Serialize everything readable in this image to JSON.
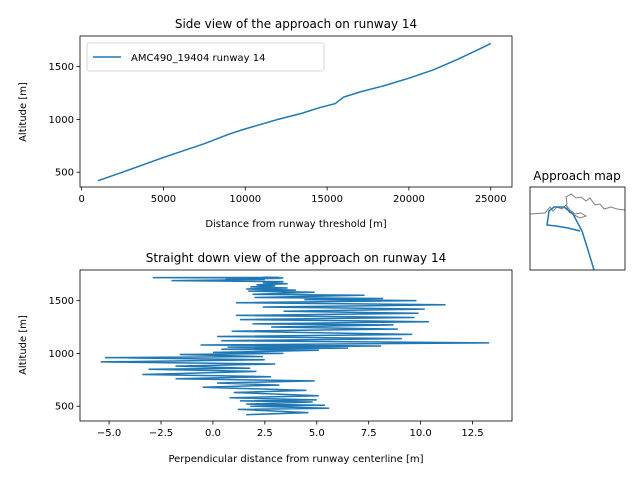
{
  "colors": {
    "series": "#1f77b4",
    "map_coast": "#808080",
    "axes": "#000000"
  },
  "chart_data": [
    {
      "type": "line",
      "title": "Side view of the approach on runway 14",
      "xlabel": "Distance from runway threshold [m]",
      "ylabel": "Altitude [m]",
      "xlim": [
        -100,
        26300
      ],
      "ylim": [
        360,
        1790
      ],
      "xticks": [
        0,
        5000,
        10000,
        15000,
        20000,
        25000
      ],
      "xtick_labels": [
        "0",
        "5000",
        "10000",
        "15000",
        "20000",
        "25000"
      ],
      "yticks": [
        500,
        1000,
        1500
      ],
      "ytick_labels": [
        "500",
        "1000",
        "1500"
      ],
      "legend_position": "top-left",
      "series": [
        {
          "name": "AMC490_19404 runway 14",
          "x": [
            1000,
            2500,
            5000,
            7500,
            9000,
            10000,
            12000,
            13500,
            14500,
            15500,
            16000,
            17000,
            18500,
            20000,
            21500,
            23000,
            24500,
            25000
          ],
          "y": [
            420,
            500,
            640,
            770,
            860,
            910,
            1000,
            1060,
            1110,
            1150,
            1210,
            1260,
            1320,
            1390,
            1470,
            1570,
            1680,
            1720
          ]
        }
      ]
    },
    {
      "type": "line",
      "title": "Straight down view of the approach on runway 14",
      "xlabel": "Perpendicular distance from runway centerline [m]",
      "ylabel": "Altitude [m]",
      "xlim": [
        -6.4,
        14.4
      ],
      "ylim": [
        360,
        1790
      ],
      "xticks": [
        -5.0,
        -2.5,
        0.0,
        2.5,
        5.0,
        7.5,
        10.0,
        12.5
      ],
      "xtick_labels": [
        "−5.0",
        "−2.5",
        "0.0",
        "2.5",
        "5.0",
        "7.5",
        "10.0",
        "12.5"
      ],
      "yticks": [
        500,
        1000,
        1500
      ],
      "ytick_labels": [
        "500",
        "1000",
        "1500"
      ],
      "series": [
        {
          "x": [
            1.6,
            4.6,
            1.2,
            5.6,
            1.8,
            5.4,
            1.6,
            4.8,
            1.3,
            5.0,
            0.8,
            5.1,
            1.0,
            4.5,
            -0.5,
            3.2,
            0.2,
            4.9,
            -1.8,
            2.8,
            -3.4,
            2.1,
            -3.1,
            1.8,
            -1.8,
            3.0,
            -5.4,
            2.5,
            -5.2,
            2.4,
            -1.6,
            3.4,
            0.0,
            5.1,
            0.4,
            6.5,
            0.7,
            8.1,
            -0.6,
            13.3,
            0.4,
            9.1,
            0.2,
            9.6,
            0.9,
            8.9,
            2.8,
            8.7,
            1.9,
            10.4,
            1.3,
            9.7,
            1.1,
            9.9,
            3.4,
            10.2,
            2.4,
            11.2,
            1.1,
            9.8,
            4.4,
            8.2,
            2.0,
            7.3,
            1.9,
            4.9,
            1.7,
            4.0,
            1.6,
            3.6,
            1.8,
            3.0,
            2.1,
            3.6,
            2.4,
            3.4,
            -2.0,
            2.5,
            0.6,
            3.3,
            0.7,
            3.4,
            -2.9,
            3.2,
            2.4
          ],
          "y": [
            420,
            440,
            470,
            480,
            500,
            510,
            520,
            540,
            550,
            560,
            580,
            600,
            630,
            650,
            680,
            700,
            720,
            740,
            760,
            780,
            800,
            830,
            850,
            860,
            880,
            900,
            920,
            940,
            960,
            970,
            990,
            1000,
            1010,
            1030,
            1040,
            1050,
            1060,
            1070,
            1080,
            1100,
            1120,
            1140,
            1160,
            1180,
            1210,
            1230,
            1250,
            1270,
            1280,
            1300,
            1320,
            1340,
            1360,
            1380,
            1400,
            1420,
            1440,
            1460,
            1480,
            1500,
            1510,
            1520,
            1530,
            1550,
            1560,
            1580,
            1590,
            1600,
            1610,
            1620,
            1630,
            1640,
            1650,
            1660,
            1670,
            1680,
            1690,
            1700,
            1705,
            1710,
            1712,
            1715,
            1718,
            1720,
            1722
          ]
        }
      ]
    },
    {
      "type": "map",
      "title": "Approach map"
    }
  ]
}
